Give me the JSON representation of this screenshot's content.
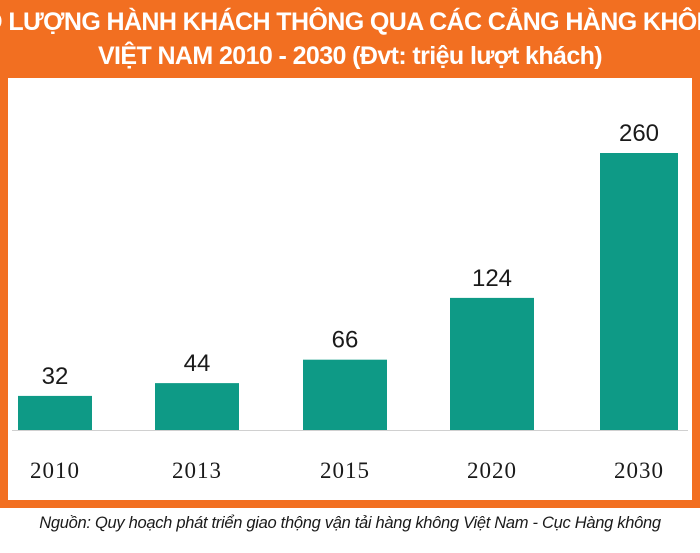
{
  "chart_data": {
    "type": "bar",
    "title_lines": [
      "SỐ LƯỢNG HÀNH KHÁCH THÔNG QUA CÁC CẢNG HÀNG KHÔNG",
      "VIỆT NAM 2010 - 2030 (Đvt: triệu lượt khách)"
    ],
    "categories": [
      "2010",
      "2013",
      "2015",
      "2020",
      "2030"
    ],
    "values": [
      32,
      44,
      66,
      124,
      260
    ],
    "ylim": [
      0,
      260
    ],
    "grid": false,
    "bar_color": "#0e9a86",
    "frame_color": "#f26f21"
  },
  "source": "Nguồn: Quy hoạch phát triển giao thộng vận tải hàng không Việt Nam - Cục Hàng không"
}
